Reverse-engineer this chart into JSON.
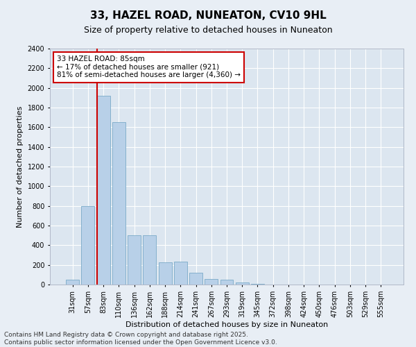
{
  "title": "33, HAZEL ROAD, NUNEATON, CV10 9HL",
  "subtitle": "Size of property relative to detached houses in Nuneaton",
  "xlabel": "Distribution of detached houses by size in Nuneaton",
  "ylabel": "Number of detached properties",
  "categories": [
    "31sqm",
    "57sqm",
    "83sqm",
    "110sqm",
    "136sqm",
    "162sqm",
    "188sqm",
    "214sqm",
    "241sqm",
    "267sqm",
    "293sqm",
    "319sqm",
    "345sqm",
    "372sqm",
    "398sqm",
    "424sqm",
    "450sqm",
    "476sqm",
    "503sqm",
    "529sqm",
    "555sqm"
  ],
  "values": [
    50,
    800,
    1920,
    1650,
    500,
    500,
    225,
    230,
    120,
    60,
    50,
    20,
    5,
    2,
    2,
    1,
    1,
    1,
    1,
    0,
    0
  ],
  "bar_color": "#b8d0e8",
  "bar_edge_color": "#7aaac8",
  "red_line_index": 2,
  "ylim": [
    0,
    2400
  ],
  "yticks": [
    0,
    200,
    400,
    600,
    800,
    1000,
    1200,
    1400,
    1600,
    1800,
    2000,
    2200,
    2400
  ],
  "annotation_text": "33 HAZEL ROAD: 85sqm\n← 17% of detached houses are smaller (921)\n81% of semi-detached houses are larger (4,360) →",
  "annotation_box_facecolor": "#ffffff",
  "annotation_box_edgecolor": "#cc0000",
  "footer_line1": "Contains HM Land Registry data © Crown copyright and database right 2025.",
  "footer_line2": "Contains public sector information licensed under the Open Government Licence v3.0.",
  "fig_facecolor": "#e8eef5",
  "plot_facecolor": "#dce6f0",
  "grid_color": "#ffffff",
  "title_fontsize": 11,
  "subtitle_fontsize": 9,
  "tick_fontsize": 7,
  "ylabel_fontsize": 8,
  "xlabel_fontsize": 8,
  "annotation_fontsize": 7.5,
  "footer_fontsize": 6.5
}
